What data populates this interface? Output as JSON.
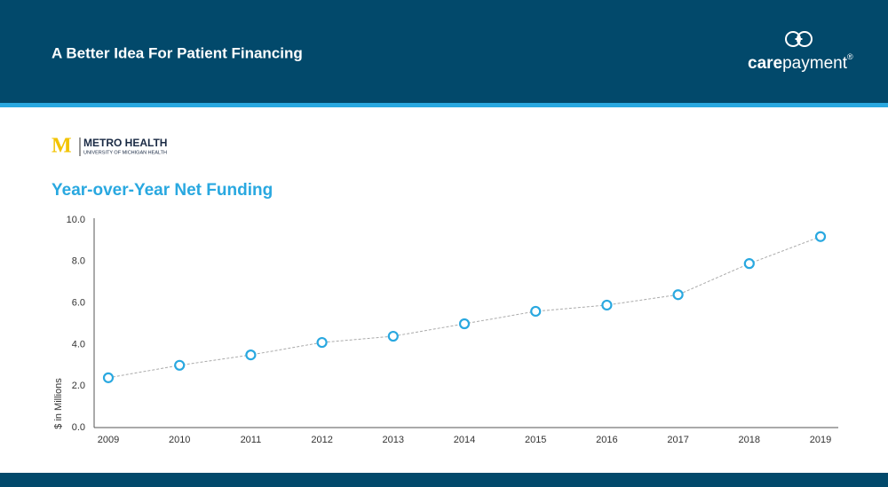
{
  "header": {
    "title": "A Better Idea For Patient Financing"
  },
  "brand": {
    "bold": "care",
    "rest": "payment",
    "mark": "®"
  },
  "partner": {
    "initial": "M",
    "name": "METRO HEALTH",
    "sub": "UNIVERSITY OF MICHIGAN HEALTH"
  },
  "chart_data": {
    "type": "line",
    "title": "Year-over-Year Net Funding",
    "y_label": "$ in Millions",
    "categories": [
      "2009",
      "2010",
      "2011",
      "2012",
      "2013",
      "2014",
      "2015",
      "2016",
      "2017",
      "2018",
      "2019"
    ],
    "series": [
      {
        "name": "Net Funding",
        "color": "#29a8e0",
        "values": [
          2.4,
          3.0,
          3.5,
          4.1,
          4.4,
          5.0,
          5.6,
          5.9,
          6.4,
          7.9,
          9.2
        ]
      }
    ],
    "ylim": [
      0,
      10
    ],
    "yticks": [
      {
        "value": 0,
        "label": "0.0"
      },
      {
        "value": 2,
        "label": "2.0"
      },
      {
        "value": 4,
        "label": "4.0"
      },
      {
        "value": 6,
        "label": "6.0"
      },
      {
        "value": 8,
        "label": "8.0"
      },
      {
        "value": 10,
        "label": "10.0"
      }
    ],
    "grid": false
  }
}
